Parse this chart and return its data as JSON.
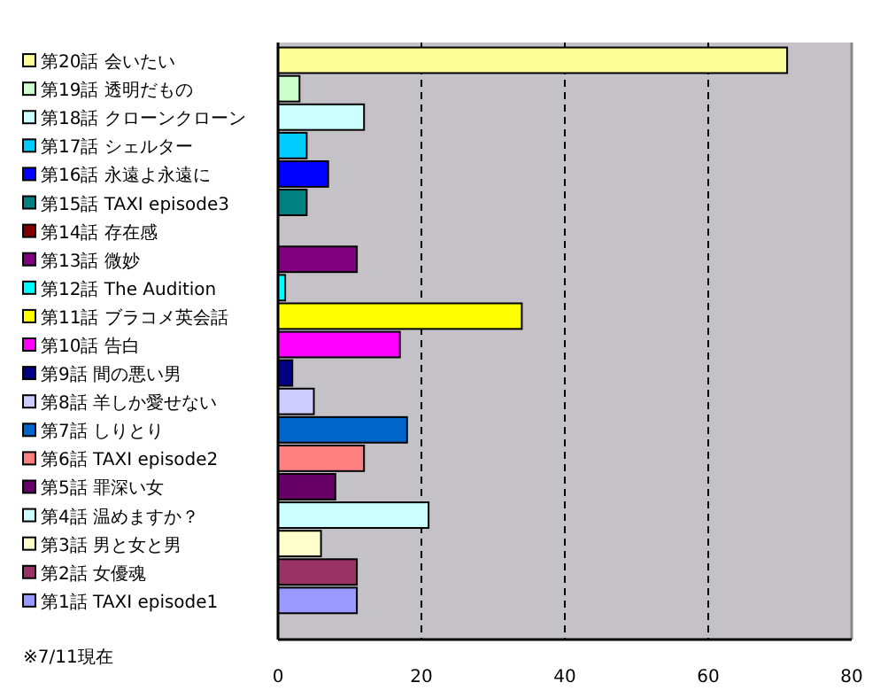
{
  "chart_data": {
    "type": "bar",
    "orientation": "horizontal",
    "grid": "x",
    "xlim": [
      0,
      80
    ],
    "xticks": [
      0,
      20,
      40,
      60,
      80
    ],
    "categories": [
      "第20話 会いたい",
      "第19話 透明だもの",
      "第18話 クローンクローン",
      "第17話 シェルター",
      "第16話 永遠よ永遠に",
      "第15話 TAXI episode3",
      "第14話 存在感",
      "第13話 微妙",
      "第12話 The Audition",
      "第11話 ブラコメ英会話",
      "第10話 告白",
      "第9話 間の悪い男",
      "第8話 羊しか愛せない",
      "第7話 しりとり",
      "第6話 TAXI episode2",
      "第5話 罪深い女",
      "第4話 温めますか？",
      "第3話 男と女と男",
      "第2話 女優魂",
      "第1話 TAXI episode1"
    ],
    "values": [
      71,
      3,
      12,
      4,
      7,
      4,
      0,
      11,
      1,
      34,
      17,
      2,
      5,
      18,
      12,
      8,
      21,
      6,
      11,
      11
    ],
    "colors": [
      "#ffff99",
      "#ccffcc",
      "#ccffff",
      "#00ccff",
      "#0000ff",
      "#008080",
      "#800000",
      "#800080",
      "#00ffff",
      "#ffff00",
      "#ff00ff",
      "#000080",
      "#ccccff",
      "#0066cc",
      "#ff8080",
      "#660066",
      "#ccffff",
      "#ffffcc",
      "#993366",
      "#9999ff"
    ],
    "annotations": [
      "※7/11現在"
    ]
  }
}
